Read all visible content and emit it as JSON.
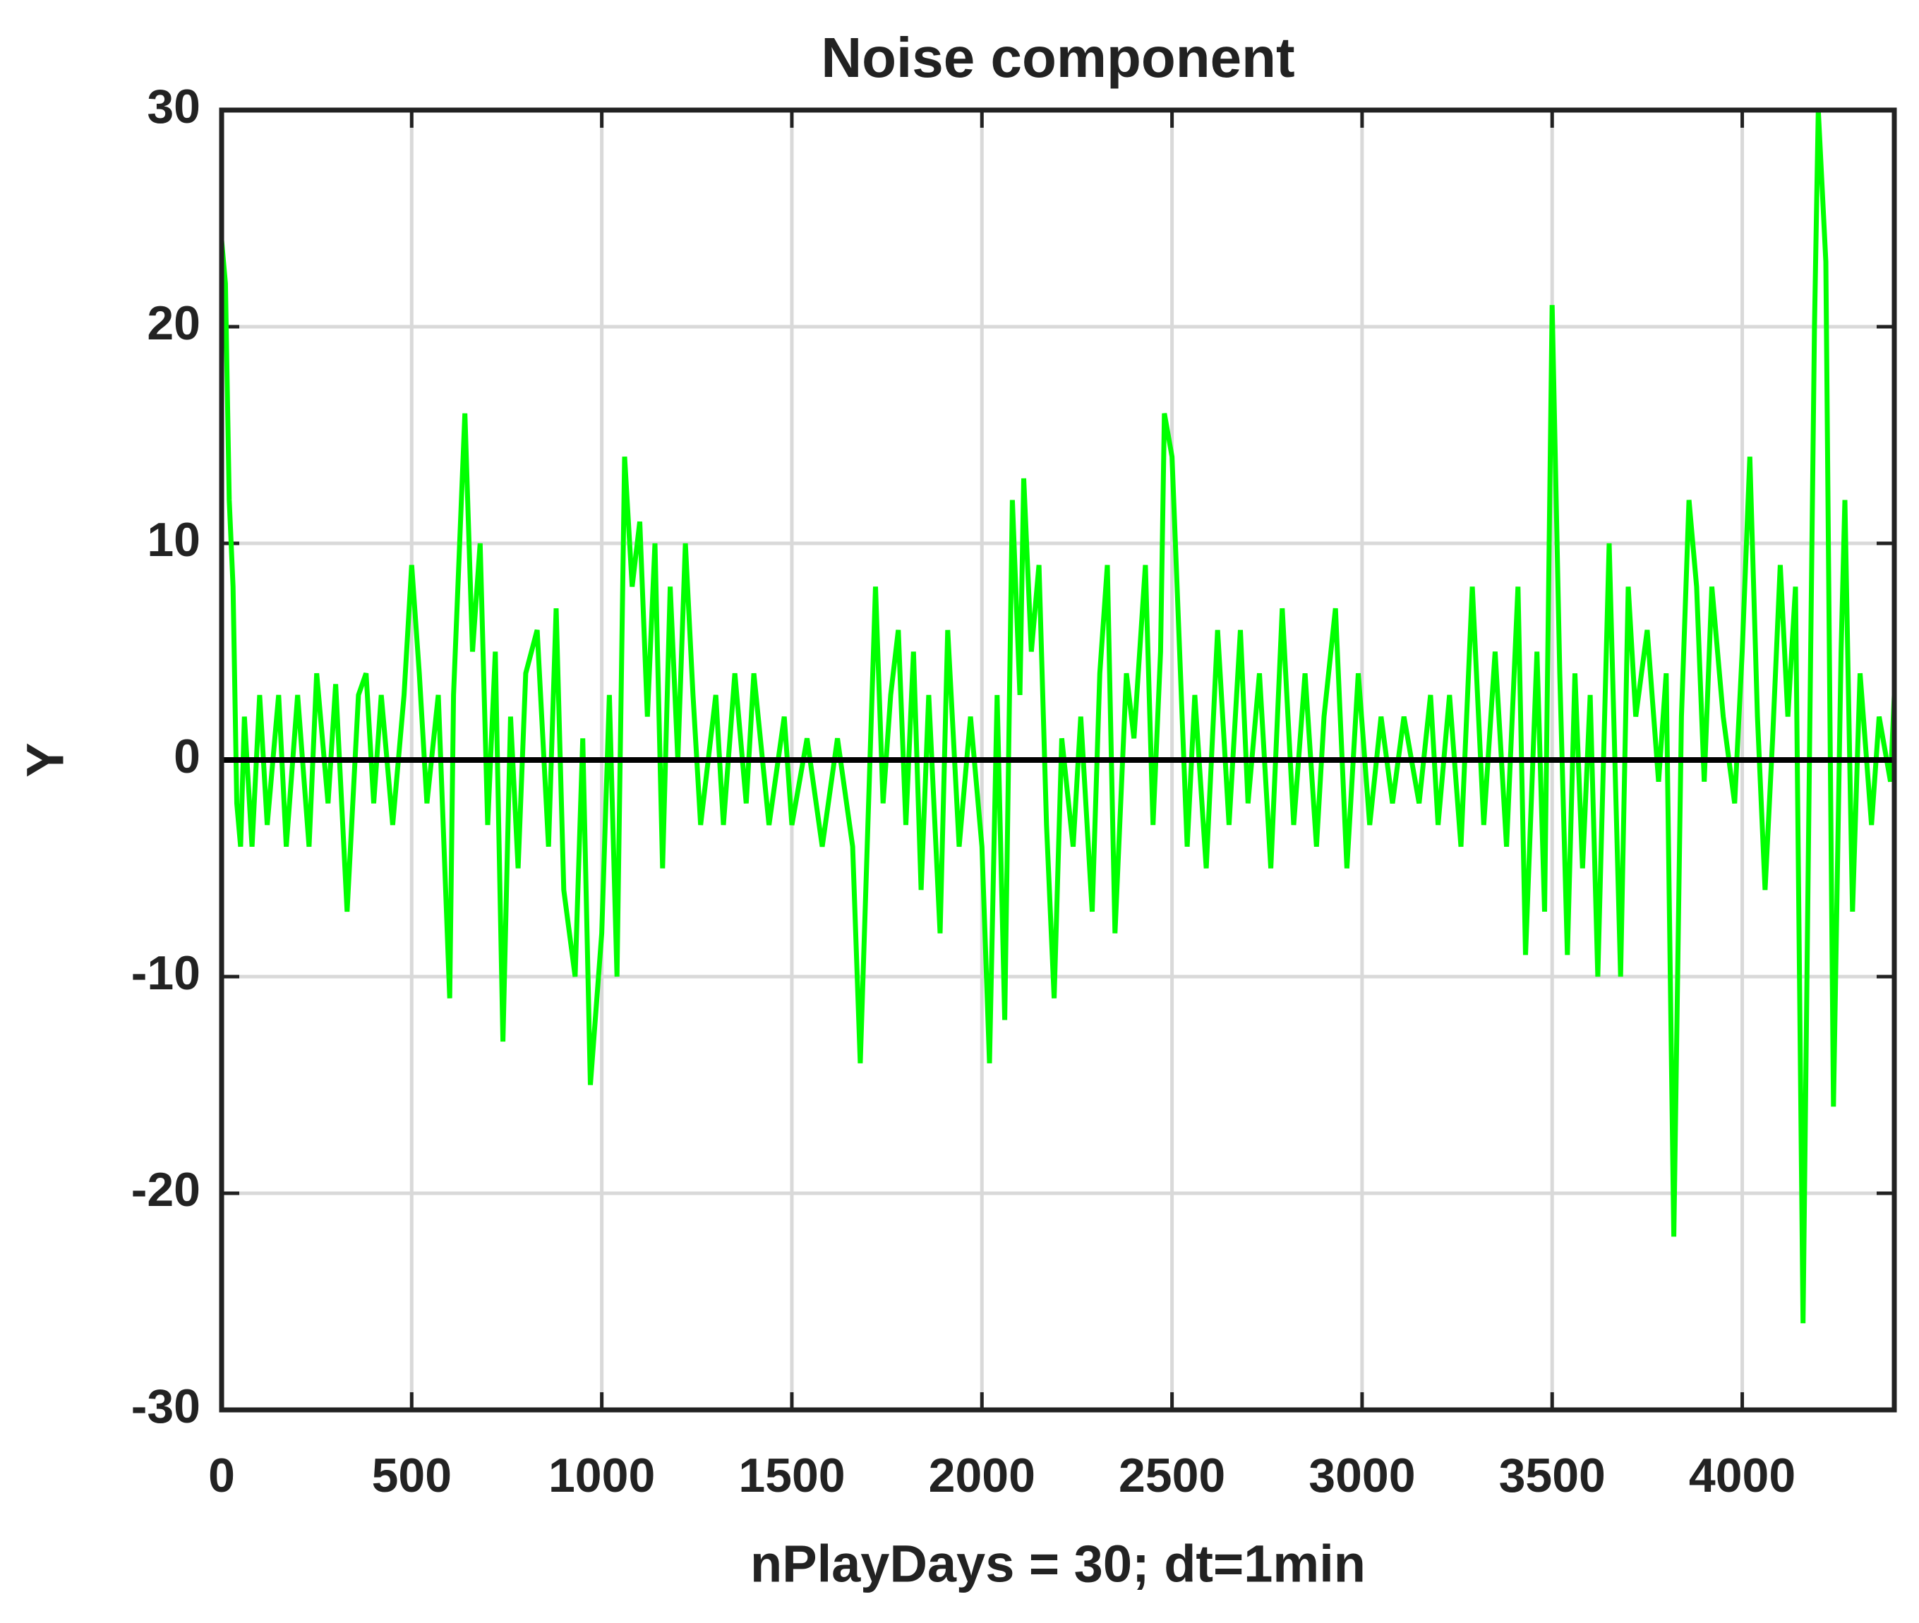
{
  "chart_data": {
    "type": "line",
    "title": "Noise component",
    "xlabel": "nPlayDays = 30;  dt=1min",
    "ylabel": "Y",
    "xlim": [
      0,
      4400
    ],
    "ylim": [
      -30,
      30
    ],
    "xticks": [
      0,
      500,
      1000,
      1500,
      2000,
      2500,
      3000,
      3500,
      4000
    ],
    "yticks": [
      -30,
      -20,
      -10,
      0,
      10,
      20,
      30
    ],
    "grid": true,
    "hline": 0,
    "series": [
      {
        "color": "#00ff00",
        "x": [
          0,
          10,
          20,
          30,
          40,
          50,
          60,
          80,
          100,
          120,
          150,
          170,
          200,
          230,
          250,
          280,
          300,
          330,
          360,
          380,
          400,
          420,
          450,
          480,
          500,
          520,
          540,
          570,
          600,
          610,
          640,
          660,
          680,
          700,
          720,
          740,
          760,
          780,
          800,
          830,
          860,
          880,
          900,
          930,
          950,
          970,
          1000,
          1020,
          1040,
          1060,
          1080,
          1100,
          1120,
          1140,
          1160,
          1180,
          1200,
          1220,
          1240,
          1260,
          1300,
          1320,
          1350,
          1380,
          1400,
          1440,
          1480,
          1500,
          1540,
          1580,
          1620,
          1660,
          1680,
          1700,
          1720,
          1740,
          1760,
          1780,
          1800,
          1820,
          1840,
          1860,
          1890,
          1910,
          1940,
          1970,
          2000,
          2020,
          2040,
          2060,
          2080,
          2100,
          2110,
          2130,
          2150,
          2170,
          2190,
          2210,
          2240,
          2260,
          2290,
          2310,
          2330,
          2350,
          2380,
          2400,
          2430,
          2450,
          2470,
          2480,
          2500,
          2520,
          2540,
          2560,
          2590,
          2620,
          2650,
          2680,
          2700,
          2730,
          2760,
          2790,
          2820,
          2850,
          2880,
          2900,
          2930,
          2960,
          2990,
          3020,
          3050,
          3080,
          3110,
          3150,
          3180,
          3200,
          3230,
          3260,
          3290,
          3320,
          3350,
          3380,
          3410,
          3430,
          3460,
          3480,
          3500,
          3520,
          3540,
          3560,
          3580,
          3600,
          3620,
          3650,
          3680,
          3700,
          3720,
          3750,
          3780,
          3800,
          3820,
          3840,
          3860,
          3880,
          3900,
          3920,
          3950,
          3980,
          4000,
          4020,
          4040,
          4060,
          4080,
          4100,
          4120,
          4140,
          4160,
          4180,
          4190,
          4200,
          4220,
          4240,
          4260,
          4270,
          4290,
          4310,
          4340,
          4360,
          4390,
          4400
        ],
        "values": [
          24,
          22,
          12,
          8,
          -2,
          -4,
          2,
          -4,
          3,
          -3,
          3,
          -4,
          3,
          -4,
          4,
          -2,
          3.5,
          -7,
          3,
          4,
          -2,
          3,
          -3,
          3,
          9,
          4,
          -2,
          3,
          -11,
          3,
          16,
          5,
          10,
          -3,
          5,
          -13,
          2,
          -5,
          4,
          6,
          -4,
          7,
          -6,
          -10,
          1,
          -15,
          -8,
          3,
          -10,
          14,
          8,
          11,
          2,
          10,
          -5,
          8,
          0,
          10,
          3,
          -3,
          3,
          -3,
          4,
          -2,
          4,
          -3,
          2,
          -3,
          1,
          -4,
          1,
          -4,
          -14,
          -3,
          8,
          -2,
          3,
          6,
          -3,
          5,
          -6,
          3,
          -8,
          6,
          -4,
          2,
          -4,
          -14,
          3,
          -12,
          12,
          3,
          13,
          5,
          9,
          -3,
          -11,
          1,
          -4,
          2,
          -7,
          4,
          9,
          -8,
          4,
          1,
          9,
          -3,
          5,
          16,
          14,
          5,
          -4,
          3,
          -5,
          6,
          -3,
          6,
          -2,
          4,
          -5,
          7,
          -3,
          4,
          -4,
          2,
          7,
          -5,
          4,
          -3,
          2,
          -2,
          2,
          -2,
          3,
          -3,
          3,
          -4,
          8,
          -3,
          5,
          -4,
          8,
          -9,
          5,
          -7,
          21,
          4,
          -9,
          4,
          -5,
          3,
          -10,
          10,
          -10,
          8,
          2,
          6,
          -1,
          4,
          -22,
          2,
          12,
          8,
          -1,
          8,
          2,
          -2,
          5,
          14,
          2,
          -6,
          1,
          9,
          2,
          8,
          -26,
          5,
          20,
          30,
          23,
          -16,
          5,
          12,
          -7,
          4,
          -3,
          2,
          -1,
          3
        ]
      }
    ]
  }
}
